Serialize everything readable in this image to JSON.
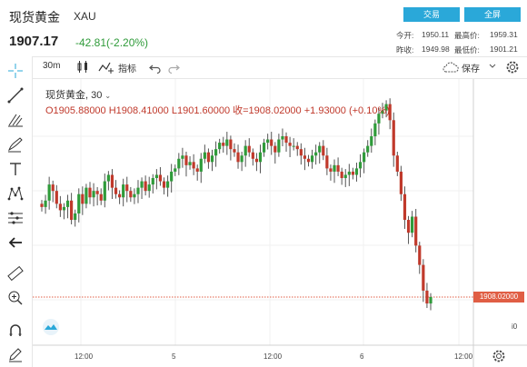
{
  "header": {
    "title": "现货黄金",
    "symbol": "XAU",
    "price": "1907.17",
    "change": "-42.81(-2.20%)",
    "trade_label": "交易",
    "fullscreen_label": "全屏",
    "stats": {
      "open_label": "今开:",
      "open_value": "1950.11",
      "high_label": "最高价:",
      "high_value": "1959.31",
      "prev_label": "昨收:",
      "prev_value": "1949.98",
      "low_label": "最低价:",
      "low_value": "1901.21"
    },
    "colors": {
      "accent": "#2aa8d9",
      "up": "#2f9b3a",
      "down": "#c0392b"
    }
  },
  "toolbar": {
    "interval": "30m",
    "indicators_label": "指标",
    "save_label": "保存",
    "icons": [
      "candles-icon",
      "indicator-icon",
      "undo-icon",
      "redo-icon",
      "cloud-icon",
      "chevron-down-icon",
      "settings-icon"
    ]
  },
  "left_tools": [
    "crosshair-icon",
    "trend-line-icon",
    "fib-icon",
    "brush-icon",
    "text-icon",
    "pattern-icon",
    "measure-icon",
    "back-arrow-icon",
    "ruler-icon",
    "zoom-in-icon",
    "magnet-icon",
    "lock-pencil-icon"
  ],
  "legend": {
    "title": "现货黄金, 30",
    "ohlc": "O1905.88000  H1908.41000  L1901.60000  收=1908.02000  +1.93000 (+0.10%)"
  },
  "price_tag": "1908.02000",
  "x_ticks": [
    "12:00",
    "5",
    "12:00",
    "6",
    "12:00"
  ],
  "zoom_right": "i0",
  "chart_data": {
    "type": "candlestick",
    "title": "",
    "xlabel": "",
    "ylabel": "",
    "last_price": 1908.02,
    "close_series": [
      1936,
      1938,
      1943,
      1941,
      1937,
      1935,
      1936,
      1938,
      1932,
      1934,
      1940,
      1937,
      1942,
      1939,
      1941,
      1940,
      1938,
      1944,
      1946,
      1942,
      1940,
      1939,
      1943,
      1941,
      1939,
      1940,
      1942,
      1944,
      1941,
      1943,
      1945,
      1946,
      1944,
      1942,
      1944,
      1947,
      1948,
      1951,
      1952,
      1949,
      1950,
      1948,
      1947,
      1951,
      1953,
      1950,
      1952,
      1954,
      1956,
      1955,
      1957,
      1954,
      1953,
      1950,
      1952,
      1955,
      1953,
      1951,
      1950,
      1953,
      1956,
      1957,
      1955,
      1953,
      1957,
      1958,
      1956,
      1955,
      1955,
      1954,
      1952,
      1951,
      1950,
      1952,
      1953,
      1955,
      1952,
      1948,
      1947,
      1949,
      1947,
      1945,
      1946,
      1947,
      1946,
      1948,
      1950,
      1953,
      1955,
      1958,
      1962,
      1965,
      1966,
      1968,
      1963,
      1952,
      1947,
      1940,
      1932,
      1928,
      1933,
      1924,
      1918,
      1910,
      1906,
      1908
    ]
  }
}
